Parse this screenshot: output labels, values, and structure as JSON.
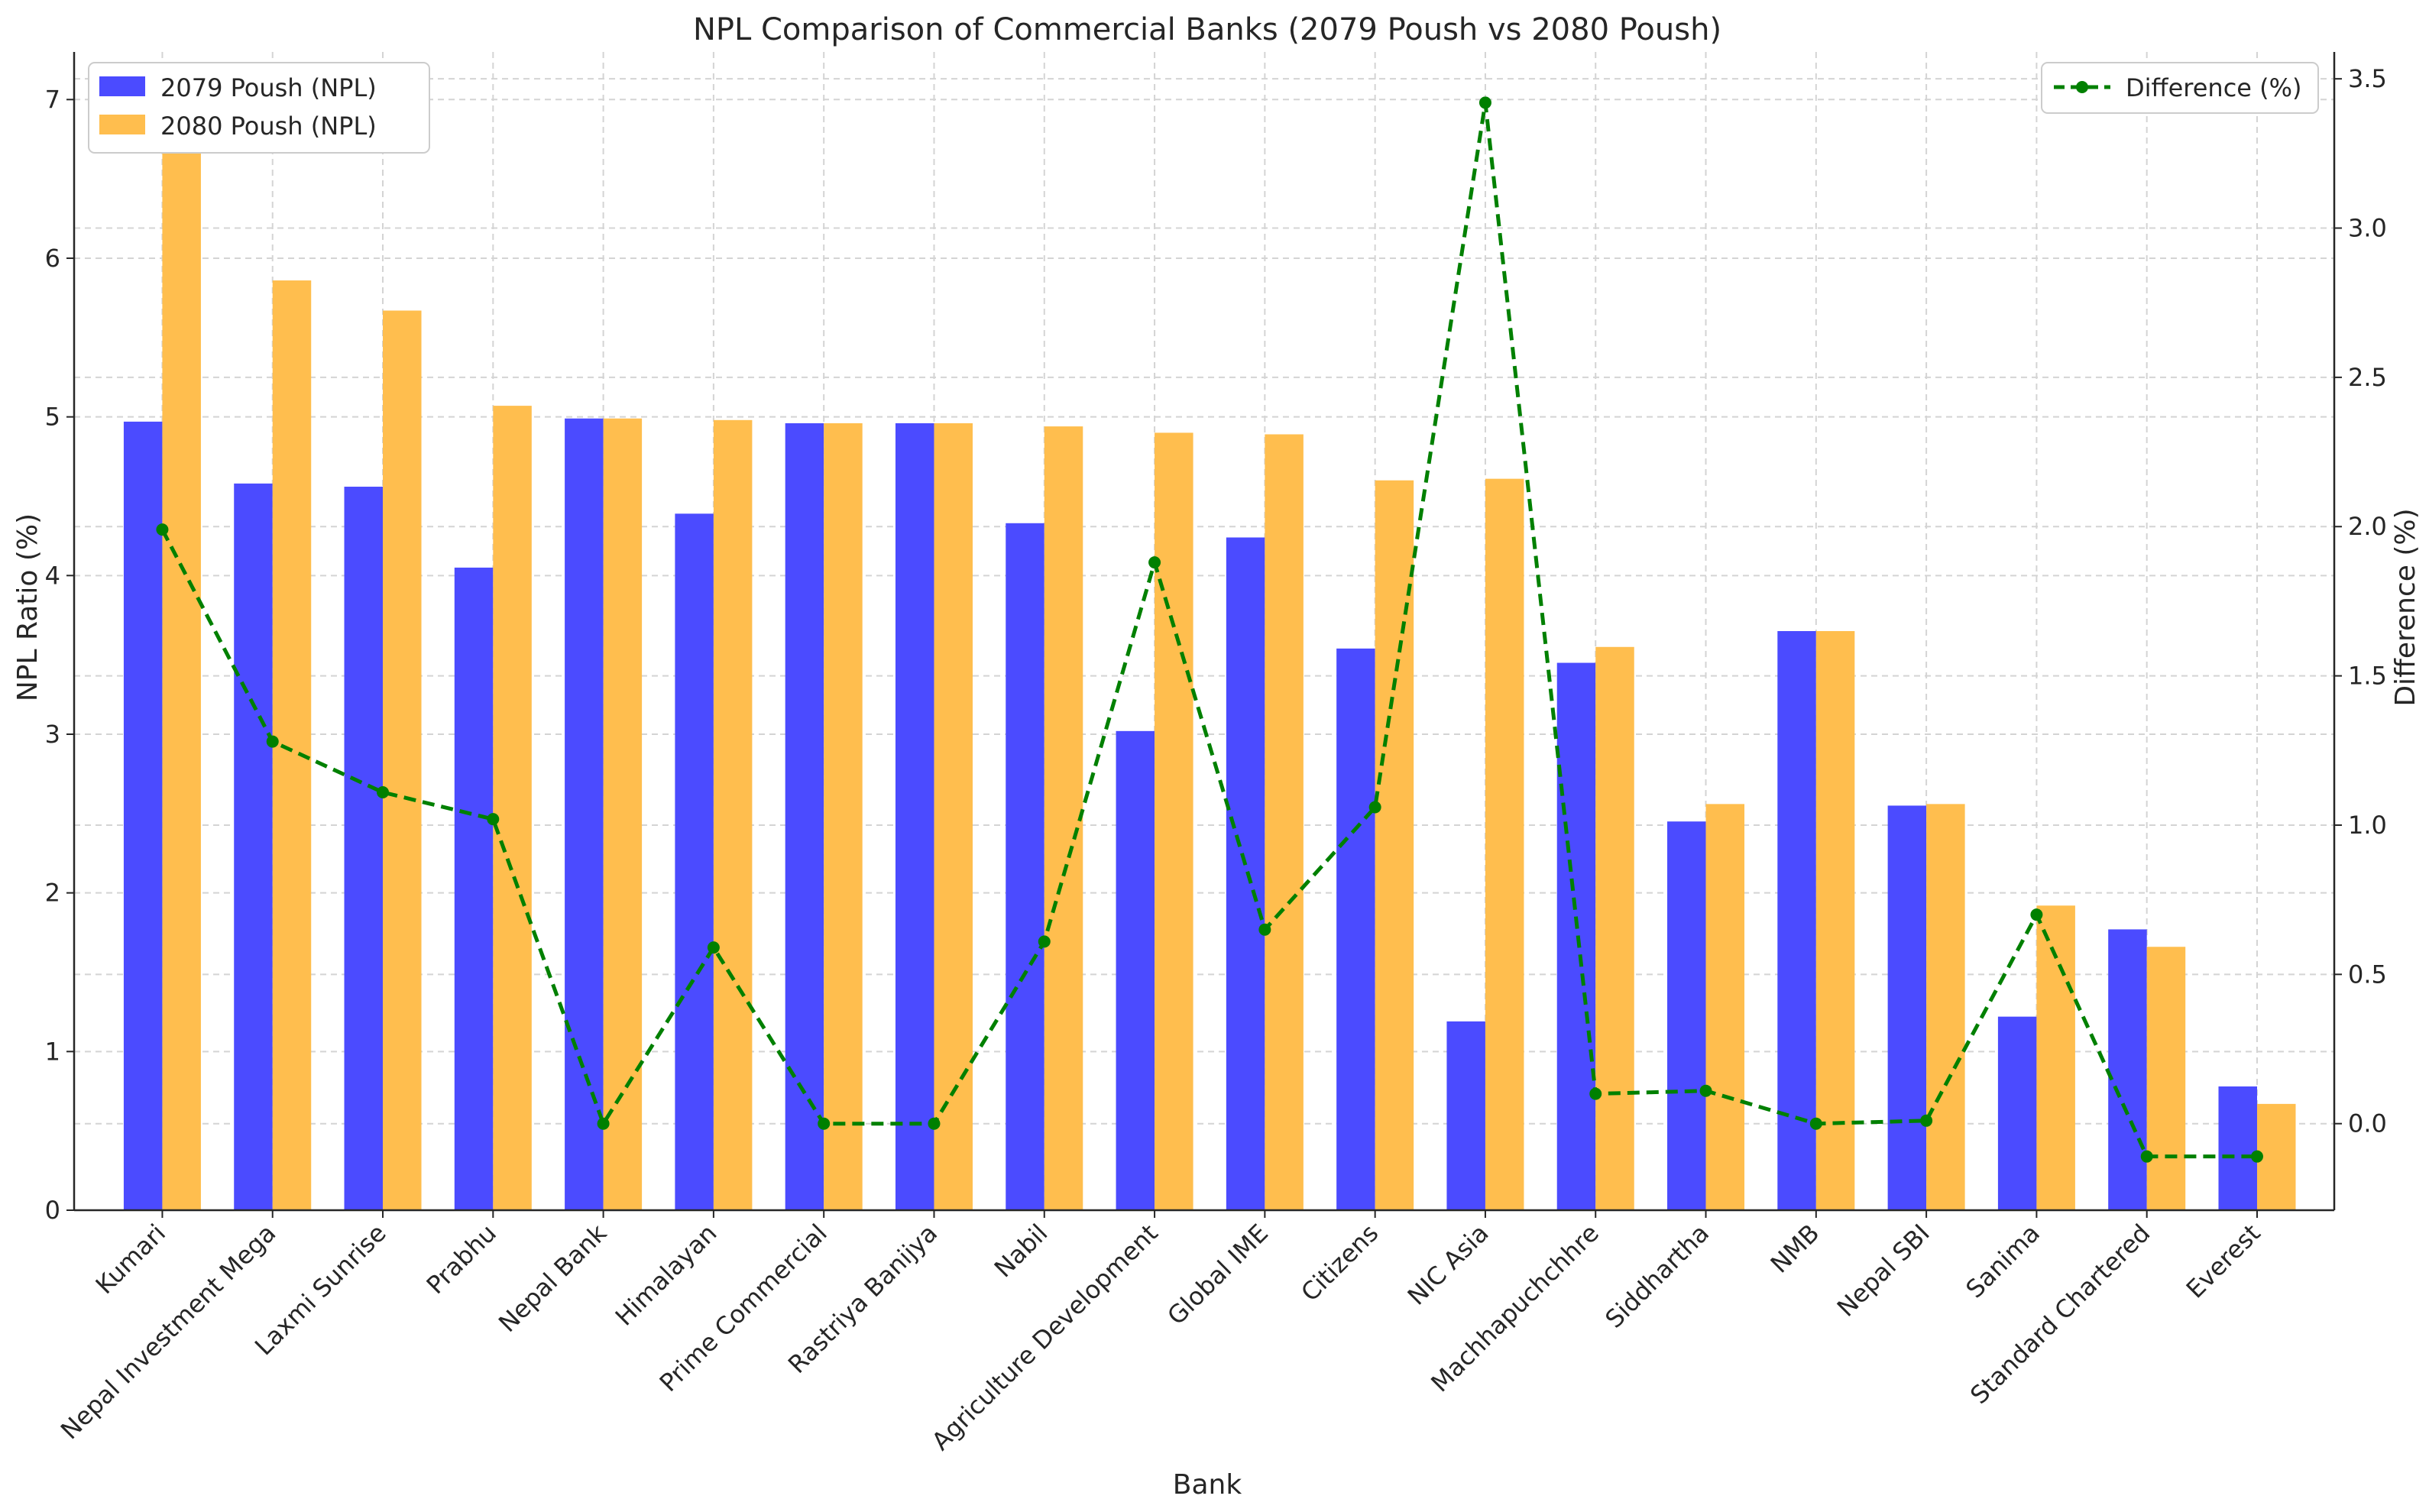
{
  "chart_data": {
    "type": "bar",
    "title": "NPL Comparison of Commercial Banks (2079 Poush vs 2080 Poush)",
    "xlabel": "Bank",
    "ylabel": "NPL Ratio (%)",
    "y2label": "Difference (%)",
    "ylim": [
      0,
      7.3
    ],
    "y2lim": [
      -0.29,
      3.59
    ],
    "yticks": [
      "0",
      "1",
      "2",
      "3",
      "4",
      "5",
      "6",
      "7"
    ],
    "y2ticks": [
      "0.0",
      "0.5",
      "1.0",
      "1.5",
      "2.0",
      "2.5",
      "3.0",
      "3.5"
    ],
    "grid": true,
    "categories": [
      "Kumari",
      "Nepal Investment Mega",
      "Laxmi Sunrise",
      "Prabhu",
      "Nepal Bank",
      "Himalayan",
      "Prime Commercial",
      "Rastriya Banijya",
      "Nabil",
      "Agriculture Development",
      "Global IME",
      "Citizens",
      "NIC Asia",
      "Machhapuchchhre",
      "Siddhartha",
      "NMB",
      "Nepal SBI",
      "Sanima",
      "Standard Chartered",
      "Everest"
    ],
    "series": [
      {
        "name": "2079 Poush (NPL)",
        "type": "bar",
        "axis": "left",
        "color": "#4b4bff",
        "values": [
          4.97,
          4.58,
          4.56,
          4.05,
          4.99,
          4.39,
          4.96,
          4.96,
          4.33,
          3.02,
          4.24,
          3.54,
          1.19,
          3.45,
          2.45,
          3.65,
          2.55,
          1.22,
          1.77,
          0.78
        ]
      },
      {
        "name": "2080 Poush (NPL)",
        "type": "bar",
        "axis": "left",
        "color": "#ffbe4e",
        "values": [
          6.96,
          5.86,
          5.67,
          5.07,
          4.99,
          4.98,
          4.96,
          4.96,
          4.94,
          4.9,
          4.89,
          4.6,
          4.61,
          3.55,
          2.56,
          3.65,
          2.56,
          1.92,
          1.66,
          0.67
        ]
      },
      {
        "name": "Difference (%)",
        "type": "line",
        "axis": "right",
        "color": "#008000",
        "values": [
          1.99,
          1.28,
          1.11,
          1.02,
          0.0,
          0.59,
          0.0,
          0.0,
          0.61,
          1.88,
          0.65,
          1.06,
          3.42,
          0.1,
          0.11,
          0.0,
          0.01,
          0.7,
          -0.11,
          -0.11
        ]
      }
    ],
    "legend_left": "top-left",
    "legend_right": "top-right"
  }
}
